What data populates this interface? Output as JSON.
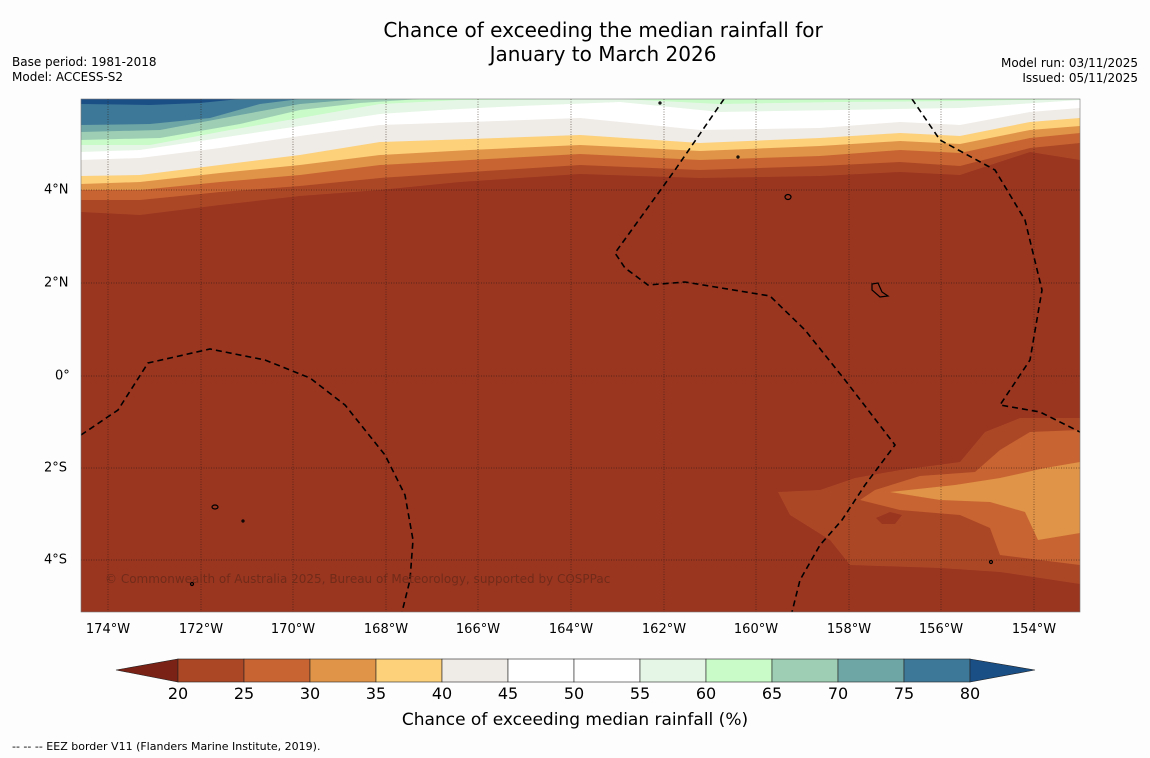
{
  "header": {
    "title_line1": "Chance of exceeding the median rainfall for",
    "title_line2": "January to March 2026",
    "base_period": "Base period: 1981-2018",
    "model": "Model: ACCESS-S2",
    "model_run": "Model run: 03/11/2025",
    "issued": "Issued: 05/11/2025"
  },
  "map": {
    "x_ticks": [
      "174°W",
      "172°W",
      "170°W",
      "168°W",
      "166°W",
      "164°W",
      "162°W",
      "160°W",
      "158°W",
      "156°W",
      "154°W"
    ],
    "y_ticks": [
      "4°N",
      "2°N",
      "0°",
      "2°S",
      "4°S"
    ],
    "lon_range": [
      -174.6,
      -153.1
    ],
    "lat_range": [
      -5.1,
      6.0
    ],
    "credit": "© Commonwealth of Australia 2025, Bureau of Meteorology, supported by COSPPac",
    "colors": {
      "c15": "#9a3520",
      "c20": "#ac4726",
      "c25": "#c86432",
      "c30": "#e09447",
      "c35": "#fdd07a",
      "c40": "#efebe6",
      "c45": "#ffffff",
      "c50": "#ffffff",
      "c55": "#e6f6e6",
      "c60": "#c8fbc8",
      "c65": "#9ecfb4",
      "c70": "#6ea5a5",
      "c75": "#3e7898",
      "c80": "#1a4f86"
    }
  },
  "colorbar": {
    "labels": [
      "20",
      "25",
      "30",
      "35",
      "40",
      "45",
      "50",
      "55",
      "60",
      "65",
      "70",
      "75",
      "80"
    ],
    "title": "Chance of exceeding median rainfall (%)"
  },
  "footer": {
    "eez": "--  --  -- EEZ border V11 (Flanders Marine Institute, 2019)."
  }
}
